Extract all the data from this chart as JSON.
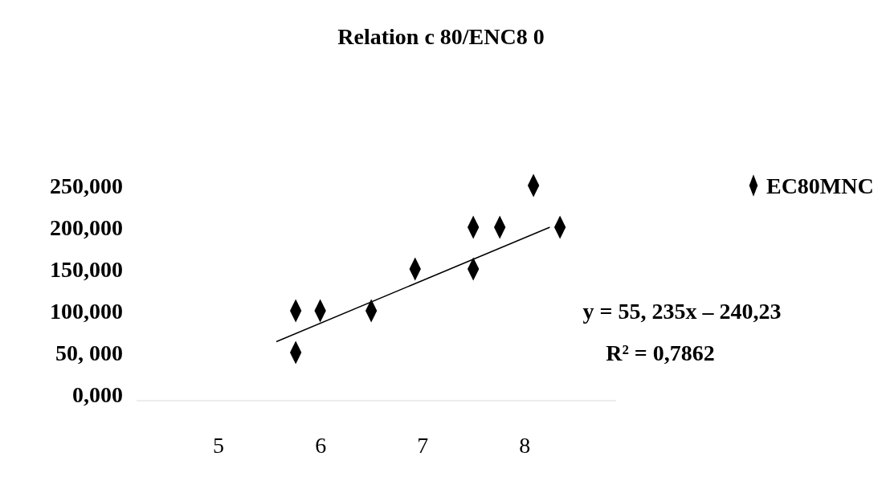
{
  "chart_data": {
    "type": "scatter",
    "title": "Relation c 80/ENC8 0",
    "series": [
      {
        "name": "EC80MNC",
        "color": "#000000",
        "marker": "diamond",
        "x": [
          5.76,
          5.76,
          6.0,
          6.5,
          6.93,
          7.5,
          7.5,
          7.76,
          8.09,
          8.35
        ],
        "values": [
          100,
          50,
          100,
          100,
          150,
          200,
          150,
          200,
          250,
          200
        ]
      },
      {
        "type": "line",
        "color": "#000000",
        "marker": "none",
        "x": [
          5.57,
          8.25
        ],
        "values": [
          63,
          200
        ]
      }
    ],
    "xlim": [
      4.2,
      8.9
    ],
    "xticks": [
      5,
      6,
      7,
      8
    ],
    "ylim": [
      0,
      250
    ],
    "yticks": [
      {
        "value": 0,
        "label": "0,000"
      },
      {
        "value": 50,
        "label": "50, 000"
      },
      {
        "value": 100,
        "label": "100,000"
      },
      {
        "value": 150,
        "label": "150,000"
      },
      {
        "value": 200,
        "label": "200,000"
      },
      {
        "value": 250,
        "label": "250,000"
      }
    ],
    "annotations": [
      "y = 55, 235x – 240,23",
      "R² = 0,7862"
    ],
    "legend": "top right",
    "grid": false
  }
}
